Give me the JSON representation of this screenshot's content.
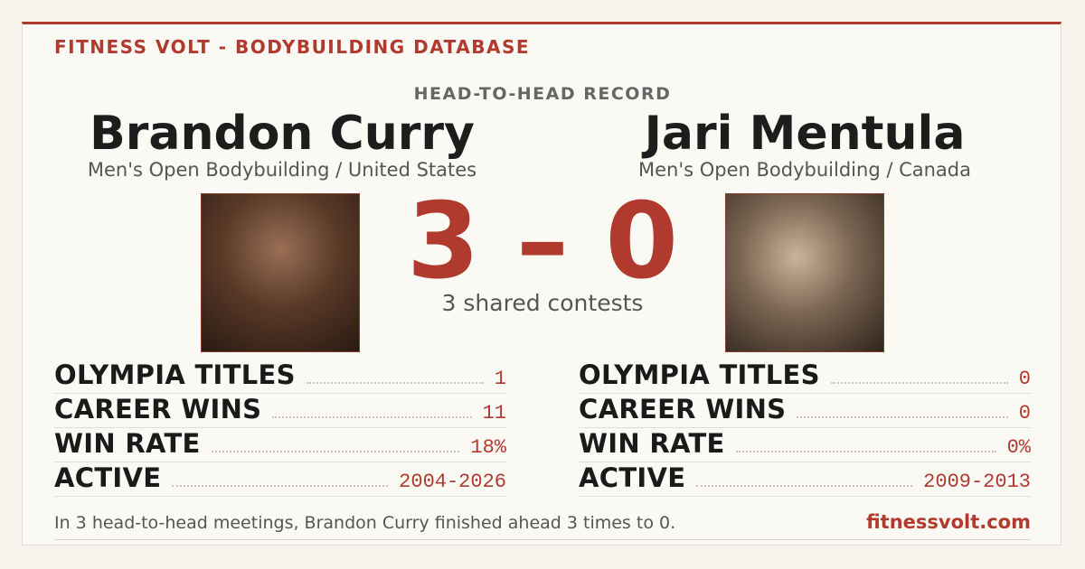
{
  "header": {
    "brand": "FITNESS VOLT - BODYBUILDING DATABASE",
    "subtitle": "HEAD-TO-HEAD RECORD"
  },
  "athletes": [
    {
      "name": "Brandon Curry",
      "division": "Men's Open Bodybuilding / United States",
      "stats": [
        {
          "label": "OLYMPIA TITLES",
          "value": "1"
        },
        {
          "label": "CAREER WINS",
          "value": "11"
        },
        {
          "label": "WIN RATE",
          "value": "18%"
        },
        {
          "label": "ACTIVE",
          "value": "2004-2026"
        }
      ]
    },
    {
      "name": "Jari Mentula",
      "division": "Men's Open Bodybuilding / Canada",
      "stats": [
        {
          "label": "OLYMPIA TITLES",
          "value": "0"
        },
        {
          "label": "CAREER WINS",
          "value": "0"
        },
        {
          "label": "WIN RATE",
          "value": "0%"
        },
        {
          "label": "ACTIVE",
          "value": "2009-2013"
        }
      ]
    }
  ],
  "score": "3 – 0",
  "shared": "3 shared contests",
  "footer": {
    "note": "In 3 head-to-head meetings, Brandon Curry finished ahead 3 times to 0.",
    "site": "fitnessvolt.com"
  }
}
